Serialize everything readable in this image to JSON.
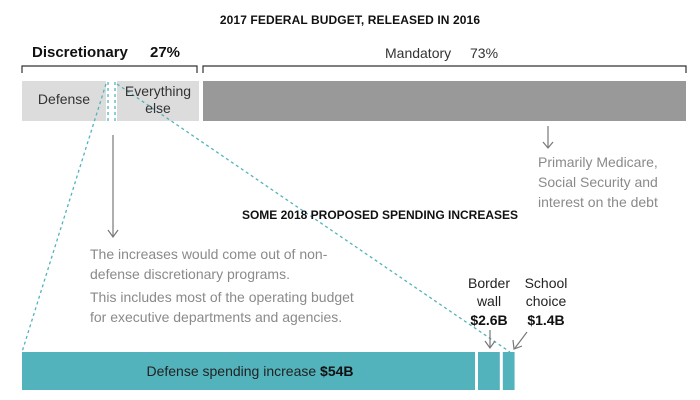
{
  "title": "2017 FEDERAL BUDGET, RELEASED IN 2016",
  "subtitle": "SOME 2018 PROPOSED SPENDING INCREASES",
  "budget": {
    "discretionary": {
      "label": "Discretionary",
      "percent": "27%",
      "share": 27
    },
    "mandatory": {
      "label": "Mandatory",
      "percent": "73%",
      "share": 73
    },
    "segments": [
      {
        "label": "Defense"
      },
      {
        "label": "Everything else"
      }
    ],
    "mandatory_note": [
      "Primarily Medicare,",
      "Social Security and",
      "interest on the debt"
    ]
  },
  "notes": {
    "increases_source": "The increases would come out of non-defense discretionary programs.",
    "operating_budget": "This includes most of the operating budget for executive departments and agencies."
  },
  "increases": [
    {
      "label": "Defense spending increase",
      "amount": "$54B",
      "value": 54
    },
    {
      "label": "Border wall",
      "line1": "Border",
      "line2": "wall",
      "amount": "$2.6B",
      "value": 2.6
    },
    {
      "label": "School choice",
      "line1": "School",
      "line2": "choice",
      "amount": "$1.4B",
      "value": 1.4
    }
  ],
  "colors": {
    "discretionary_bar": "#dcdcdc",
    "mandatory_bar": "#999999",
    "increase_bar": "#52b3bc",
    "dashed_line": "#52b3bc",
    "arrow": "#777777",
    "bracket": "#333333"
  }
}
